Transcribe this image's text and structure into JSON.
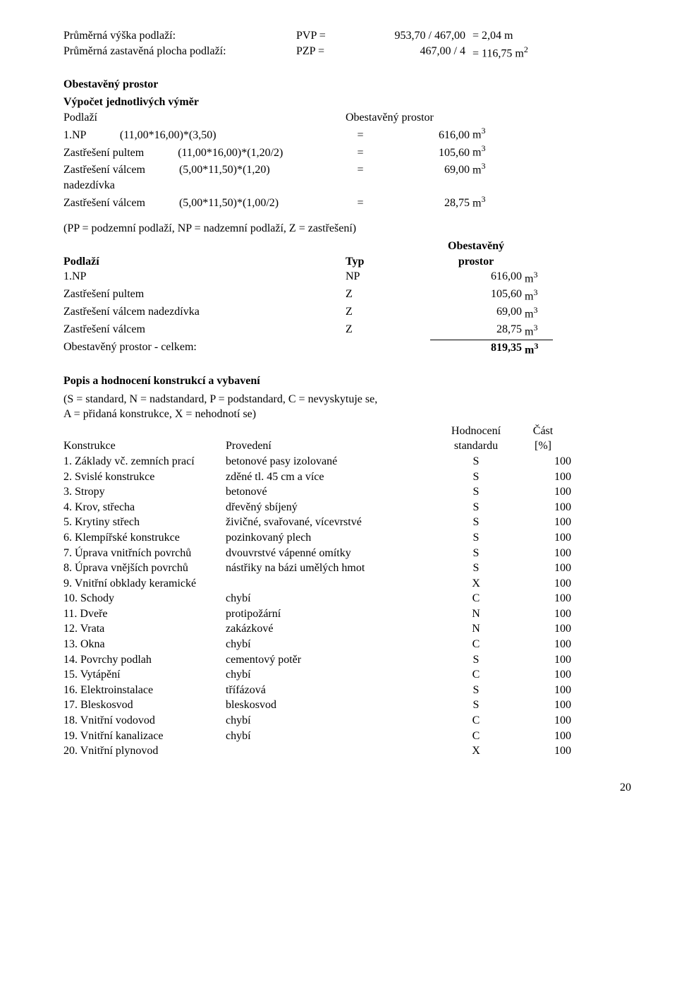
{
  "top_params": [
    {
      "label": "Průměrná výška podlaží:",
      "sym": "PVP =",
      "expr": "953,70 / 467,00",
      "res": "= 2,04 m"
    },
    {
      "label": "Průměrná zastavěná plocha podlaží:",
      "sym": "PZP =",
      "expr": "467,00 / 4",
      "res": "= 116,75 m",
      "sup": "2"
    }
  ],
  "obest_title": "Obestavěný prostor",
  "vypocet_title": "Výpočet jednotlivých výměr",
  "vypocet_head_l": "Podlaží",
  "vypocet_head_r": "Obestavěný prostor",
  "calc_rows": [
    {
      "name": "1.NP",
      "expr": "(11,00*16,00)*(3,50)",
      "eq": "=",
      "val": "616,00",
      "unit": "m",
      "sup": "3"
    },
    {
      "name": "Zastřešení pultem",
      "expr": "(11,00*16,00)*(1,20/2)",
      "eq": "=",
      "val": "105,60",
      "unit": "m",
      "sup": "3"
    },
    {
      "name": "Zastřešení válcem nadezdívka",
      "expr": "(5,00*11,50)*(1,20)",
      "eq": "=",
      "val": "69,00",
      "unit": "m",
      "sup": "3",
      "two_line": true,
      "name1": "Zastřešení válcem",
      "name2": "nadezdívka"
    },
    {
      "name": "Zastřešení válcem",
      "expr": "(5,00*11,50)*(1,00/2)",
      "eq": "=",
      "val": "28,75",
      "unit": "m",
      "sup": "3"
    }
  ],
  "legend": "(PP = podzemní podlaží, NP = nadzemní podlaží, Z = zastřešení)",
  "obest_head": {
    "name": "Podlaží",
    "typ": "Typ",
    "val_l1": "Obestavěný",
    "val_l2": "prostor"
  },
  "obest_rows": [
    {
      "name": "1.NP",
      "typ": "NP",
      "val": "616,00",
      "unit": "m",
      "sup": "3"
    },
    {
      "name": "Zastřešení pultem",
      "typ": "Z",
      "val": "105,60",
      "unit": "m",
      "sup": "3"
    },
    {
      "name": "Zastřešení válcem nadezdívka",
      "typ": "Z",
      "val": "69,00",
      "unit": "m",
      "sup": "3"
    },
    {
      "name": "Zastřešení válcem",
      "typ": "Z",
      "val": "28,75",
      "unit": "m",
      "sup": "3"
    }
  ],
  "obest_total": {
    "name": "Obestavěný prostor - celkem:",
    "val": "819,35",
    "unit": "m",
    "sup": "3"
  },
  "popis_title": "Popis a hodnocení konstrukcí a vybavení",
  "popis_legend_l1": "(S = standard, N = nadstandard, P = podstandard, C = nevyskytuje se,",
  "popis_legend_l2": "A = přidaná konstrukce, X = nehodnotí se)",
  "konst_head": {
    "name": "Konstrukce",
    "prov": "Provedení",
    "hod_l1": "Hodnocení",
    "hod_l2": "standardu",
    "cast_l1": "Část",
    "cast_l2": "[%]"
  },
  "konst_rows": [
    {
      "name": "1. Základy vč. zemních prací",
      "prov": "betonové pasy izolované",
      "hod": "S",
      "cast": "100"
    },
    {
      "name": "2. Svislé konstrukce",
      "prov": "zděné tl. 45 cm a více",
      "hod": "S",
      "cast": "100"
    },
    {
      "name": "3. Stropy",
      "prov": "betonové",
      "hod": "S",
      "cast": "100"
    },
    {
      "name": "4. Krov, střecha",
      "prov": "dřevěný sbíjený",
      "hod": "S",
      "cast": "100"
    },
    {
      "name": "5. Krytiny střech",
      "prov": "živičné, svařované, vícevrstvé",
      "hod": "S",
      "cast": "100"
    },
    {
      "name": "6. Klempířské konstrukce",
      "prov": "pozinkovaný plech",
      "hod": "S",
      "cast": "100"
    },
    {
      "name": "7. Úprava vnitřních povrchů",
      "prov": "dvouvrstvé vápenné omítky",
      "hod": "S",
      "cast": "100"
    },
    {
      "name": "8. Úprava vnějších povrchů",
      "prov": "nástřiky na bázi umělých hmot",
      "hod": "S",
      "cast": "100"
    },
    {
      "name": "9. Vnitřní obklady keramické",
      "prov": "",
      "hod": "X",
      "cast": "100"
    },
    {
      "name": "10. Schody",
      "prov": "chybí",
      "hod": "C",
      "cast": "100"
    },
    {
      "name": "11. Dveře",
      "prov": "protipožární",
      "hod": "N",
      "cast": "100"
    },
    {
      "name": "12. Vrata",
      "prov": "zakázkové",
      "hod": "N",
      "cast": "100"
    },
    {
      "name": "13. Okna",
      "prov": "chybí",
      "hod": "C",
      "cast": "100"
    },
    {
      "name": "14. Povrchy podlah",
      "prov": "cementový potěr",
      "hod": "S",
      "cast": "100"
    },
    {
      "name": "15. Vytápění",
      "prov": "chybí",
      "hod": "C",
      "cast": "100"
    },
    {
      "name": "16. Elektroinstalace",
      "prov": "třífázová",
      "hod": "S",
      "cast": "100"
    },
    {
      "name": "17. Bleskosvod",
      "prov": "bleskosvod",
      "hod": "S",
      "cast": "100"
    },
    {
      "name": "18. Vnitřní vodovod",
      "prov": "chybí",
      "hod": "C",
      "cast": "100"
    },
    {
      "name": "19. Vnitřní kanalizace",
      "prov": "chybí",
      "hod": "C",
      "cast": "100"
    },
    {
      "name": "20. Vnitřní plynovod",
      "prov": "",
      "hod": "X",
      "cast": "100"
    }
  ],
  "page_number": "20"
}
